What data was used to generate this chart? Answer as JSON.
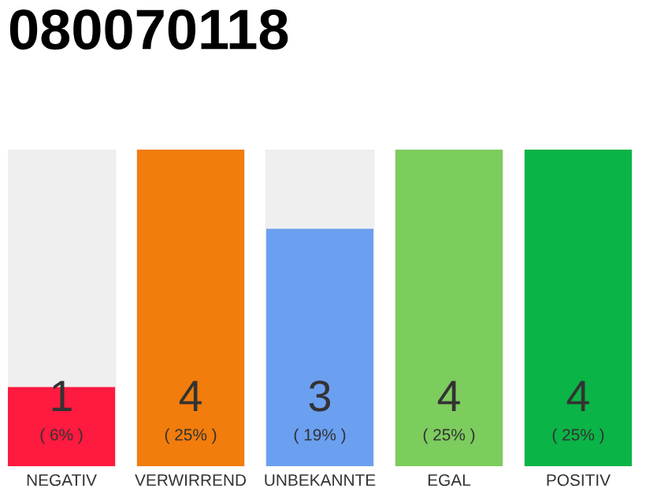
{
  "chart_data": {
    "type": "bar",
    "title": "080070118",
    "categories": [
      "NEGATIV",
      "VERWIRREND",
      "UNBEKANNTE",
      "EGAL",
      "POSITIV"
    ],
    "values": [
      1,
      4,
      3,
      4,
      4
    ],
    "colors": [
      "#ff1a40",
      "#f27c0c",
      "#6b9ff0",
      "#7dcc5e",
      "#0bb446"
    ],
    "ylim": [
      0,
      4
    ],
    "data_labels": true,
    "tick_labels": "x",
    "grid": false,
    "annotations": [
      "( 6% )",
      "( 25% )",
      "( 19% )",
      "( 25% )",
      "( 25% )"
    ]
  }
}
